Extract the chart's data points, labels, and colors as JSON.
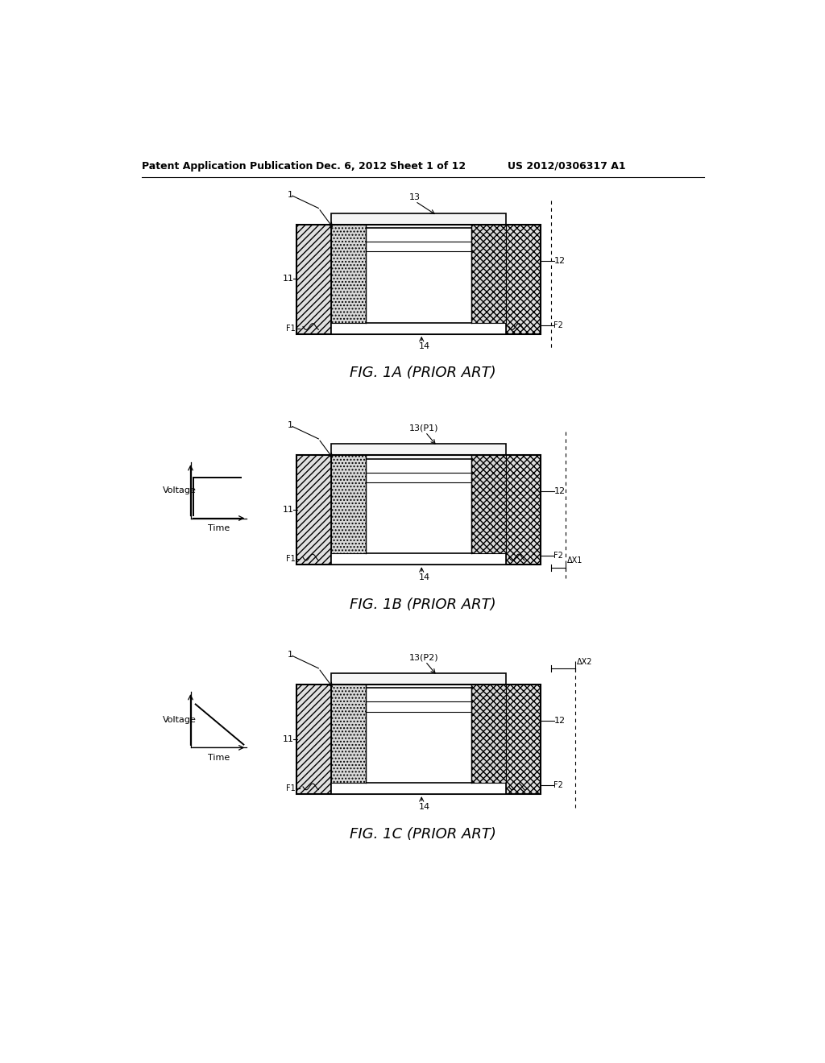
{
  "bg_color": "#ffffff",
  "header_text": "Patent Application Publication",
  "header_date": "Dec. 6, 2012",
  "header_sheet": "Sheet 1 of 12",
  "header_patent": "US 2012/0306317 A1",
  "fig1a_label": "FIG. 1A (PRIOR ART)",
  "fig1b_label": "FIG. 1B (PRIOR ART)",
  "fig1c_label": "FIG. 1C (PRIOR ART)",
  "label_color": "#000000"
}
